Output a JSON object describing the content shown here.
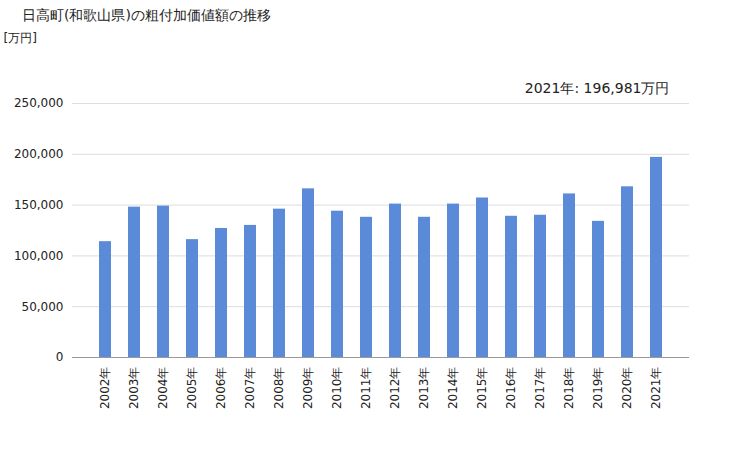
{
  "chart_data": {
    "type": "bar",
    "title": "日高町(和歌山県)の粗付加価値額の推移",
    "y_label": "[万円]",
    "annotations": [
      "2021年: 196,981万円"
    ],
    "categories": [
      "2002年",
      "2003年",
      "2004年",
      "2005年",
      "2006年",
      "2007年",
      "2008年",
      "2009年",
      "2010年",
      "2011年",
      "2012年",
      "2013年",
      "2014年",
      "2015年",
      "2016年",
      "2017年",
      "2018年",
      "2019年",
      "2020年",
      "2021年"
    ],
    "values": [
      114000,
      148000,
      149000,
      116000,
      127000,
      130000,
      146000,
      166000,
      144000,
      138000,
      151000,
      138000,
      151000,
      157000,
      139000,
      140000,
      161000,
      134000,
      168000,
      196981
    ],
    "color": "#5a8ad8",
    "ylim": [
      0,
      250000
    ],
    "yticks": [
      0,
      {
        "value": 50000,
        "label": "50,000"
      },
      {
        "value": 100000,
        "label": "100,000"
      },
      {
        "value": 150000,
        "label": "150,000"
      },
      {
        "value": 200000,
        "label": "200,000"
      },
      {
        "value": 250000,
        "label": "250,000"
      }
    ],
    "grid": true
  }
}
